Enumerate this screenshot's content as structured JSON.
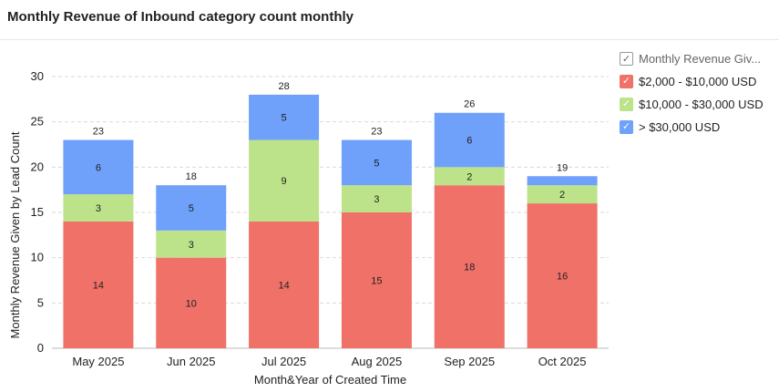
{
  "header": {
    "title": "Monthly Revenue of Inbound category count monthly"
  },
  "legend": {
    "header_label": "Monthly Revenue Giv...",
    "check_glyph": "✓"
  },
  "chart_data": {
    "type": "bar",
    "stacked": true,
    "categories": [
      "May 2025",
      "Jun 2025",
      "Jul 2025",
      "Aug 2025",
      "Sep 2025",
      "Oct 2025"
    ],
    "series": [
      {
        "name": "$2,000 - $10,000 USD",
        "color": "#f07168",
        "values": [
          14,
          10,
          14,
          15,
          18,
          16
        ]
      },
      {
        "name": "$10,000 - $30,000 USD",
        "color": "#bde38a",
        "values": [
          3,
          3,
          9,
          3,
          2,
          2
        ]
      },
      {
        "name": "> $30,000 USD",
        "color": "#6fa0fa",
        "values": [
          6,
          5,
          5,
          5,
          6,
          1
        ]
      }
    ],
    "totals": [
      23,
      18,
      28,
      23,
      26,
      19
    ],
    "xlabel": "Month&Year of Created Time",
    "ylabel": "Monthly Revenue Given by Lead Count",
    "ylim": [
      0,
      30
    ],
    "yticks": [
      0,
      5,
      10,
      15,
      20,
      25,
      30
    ],
    "grid": true,
    "legend_position": "right"
  }
}
